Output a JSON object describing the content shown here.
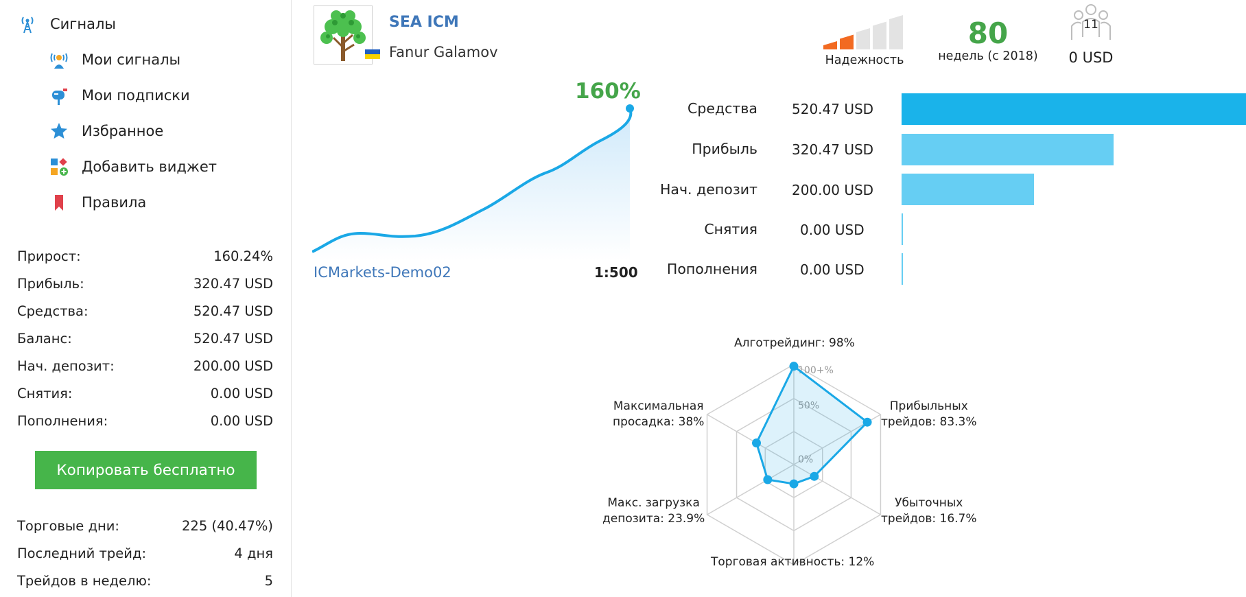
{
  "sidebar": {
    "nav": [
      {
        "label": "Сигналы",
        "icon": "signal-tower-icon"
      },
      {
        "label": "Мои сигналы",
        "icon": "my-signals-icon"
      },
      {
        "label": "Мои подписки",
        "icon": "mailbox-icon"
      },
      {
        "label": "Избранное",
        "icon": "star-icon"
      },
      {
        "label": "Добавить виджет",
        "icon": "widget-icon"
      },
      {
        "label": "Правила",
        "icon": "bookmark-icon"
      }
    ],
    "stats": [
      {
        "label": "Прирост:",
        "value": "160.24%"
      },
      {
        "label": "Прибыль:",
        "value": "320.47 USD"
      },
      {
        "label": "Средства:",
        "value": "520.47 USD"
      },
      {
        "label": "Баланс:",
        "value": "520.47 USD"
      },
      {
        "label": "Нач. депозит:",
        "value": "200.00 USD"
      },
      {
        "label": "Снятия:",
        "value": "0.00 USD"
      },
      {
        "label": "Пополнения:",
        "value": "0.00 USD"
      }
    ],
    "copy_button": "Копировать бесплатно",
    "stats2": [
      {
        "label": "Торговые дни:",
        "value": "225 (40.47%)"
      },
      {
        "label": "Последний трейд:",
        "value": "4 дня"
      },
      {
        "label": "Трейдов в неделю:",
        "value": "5"
      }
    ]
  },
  "header": {
    "title": "SEA ICM",
    "author": "Fanur Galamov",
    "reliability_label": "Надежность",
    "reliability_level": 2,
    "reliability_max": 5,
    "weeks_value": "80",
    "weeks_label": "недель (с 2018)",
    "subscribers_count": "11",
    "subscribers_usd": "0 USD"
  },
  "growth": {
    "label": "160%",
    "broker": "ICMarkets-Demo02",
    "leverage": "1:500"
  },
  "bars": [
    {
      "label": "Средства",
      "value": "520.47 USD",
      "amount": 520.47
    },
    {
      "label": "Прибыль",
      "value": "320.47 USD",
      "amount": 320.47
    },
    {
      "label": "Нач. депозит",
      "value": "200.00 USD",
      "amount": 200.0
    },
    {
      "label": "Снятия",
      "value": "0.00 USD",
      "amount": 0
    },
    {
      "label": "Пополнения",
      "value": "0.00 USD",
      "amount": 0
    }
  ],
  "radar": {
    "scale_labels": [
      "100+%",
      "50%",
      "0%"
    ],
    "axes": [
      {
        "label_lines": [
          "Алготрейдинг: 98%"
        ],
        "value": 98
      },
      {
        "label_lines": [
          "Прибыльных",
          "трейдов: 83.3%"
        ],
        "value": 83.3
      },
      {
        "label_lines": [
          "Убыточных",
          "трейдов: 16.7%"
        ],
        "value": 16.7
      },
      {
        "label_lines": [
          "Торговая активность: 12%"
        ],
        "value": 12
      },
      {
        "label_lines": [
          "Макс. загрузка",
          "депозита: 23.9%"
        ],
        "value": 23.9
      },
      {
        "label_lines": [
          "Максимальная",
          "просадка: 38%"
        ],
        "value": 38
      }
    ]
  },
  "colors": {
    "accent_blue": "#3f77b9",
    "green": "#45a54a",
    "line": "#1aa8e6",
    "bar_primary": "#1ab3ea",
    "bar_secondary": "#66cef3",
    "reliability_on": "#f26a21",
    "reliability_off": "#e3e3e3"
  }
}
